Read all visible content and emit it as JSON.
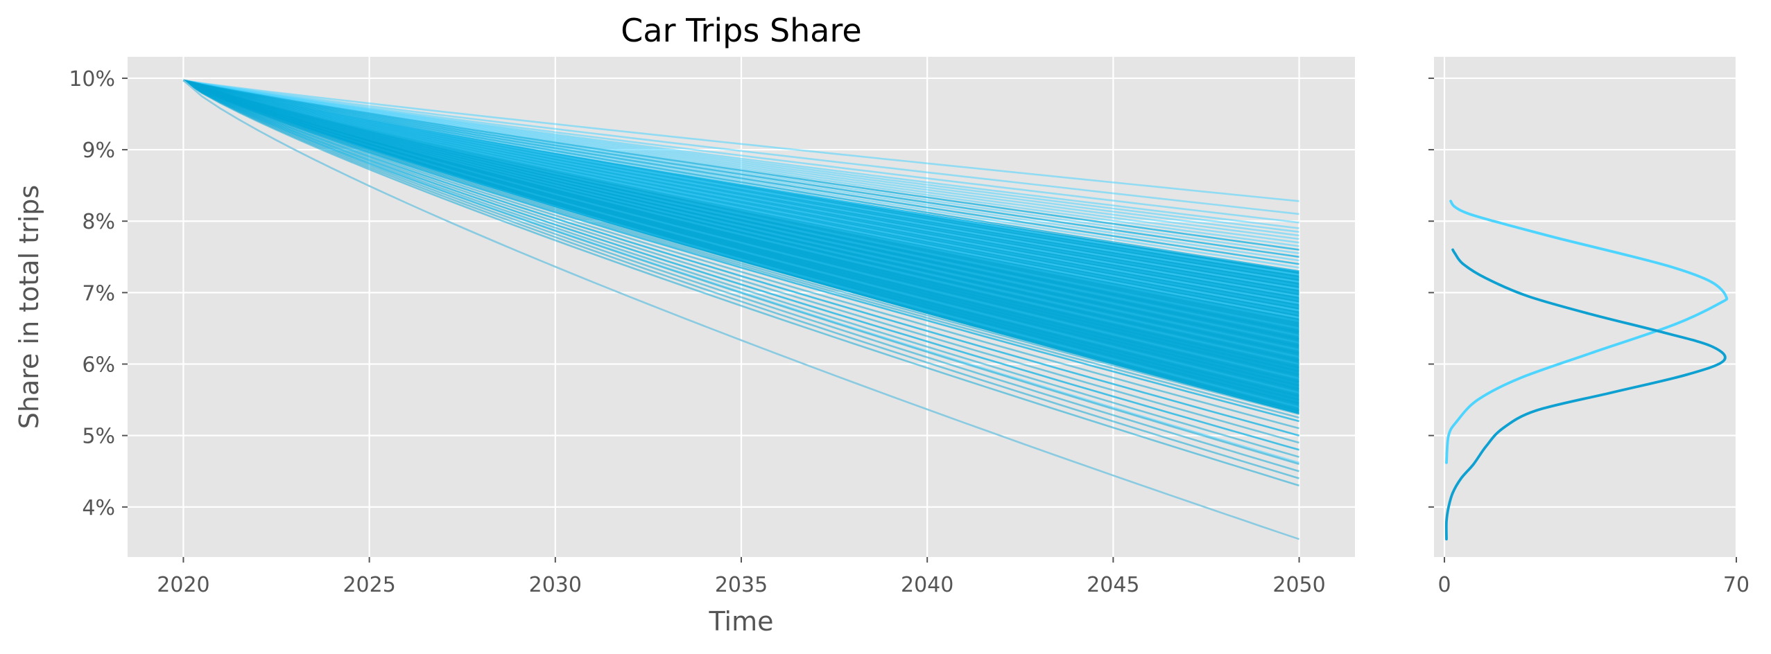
{
  "chart_data": [
    {
      "type": "line",
      "title": "Car Trips Share",
      "xlabel": "Time",
      "ylabel": "Share in total trips",
      "xlim": [
        2018.5,
        2051.5
      ],
      "ylim": [
        3.3,
        10.3
      ],
      "x_ticks": [
        2020,
        2025,
        2030,
        2035,
        2040,
        2045,
        2050
      ],
      "x_tick_labels": [
        "2020",
        "2025",
        "2030",
        "2035",
        "2040",
        "2045",
        "2050"
      ],
      "y_ticks": [
        4,
        5,
        6,
        7,
        8,
        9,
        10
      ],
      "y_tick_labels": [
        "4%",
        "5%",
        "6%",
        "7%",
        "8%",
        "9%",
        "10%"
      ],
      "grid": true,
      "start": {
        "x": 2020,
        "y": 9.97
      },
      "end_range": [
        3.55,
        8.28
      ],
      "groups": [
        {
          "color": "#4dd4ff",
          "ends": [
            8.28,
            8.1,
            7.98,
            7.9,
            7.85,
            7.8,
            7.75,
            7.7,
            7.65,
            7.6,
            7.55,
            7.5,
            7.45,
            7.4,
            7.35,
            7.3,
            7.25,
            7.2,
            7.15,
            7.1,
            7.05,
            7.0,
            6.95,
            6.9,
            6.85,
            6.8,
            6.75,
            6.7,
            6.65,
            6.6,
            6.5,
            6.4,
            6.3,
            6.2,
            6.1,
            6.0,
            5.8,
            5.6,
            5.4,
            5.2,
            5.0,
            4.8,
            4.62
          ]
        },
        {
          "color": "#00a6d6",
          "ends": [
            7.6,
            7.5,
            7.4,
            7.3,
            7.2,
            7.1,
            7.0,
            6.9,
            6.8,
            6.7,
            6.6,
            6.5,
            6.45,
            6.4,
            6.35,
            6.3,
            6.25,
            6.2,
            6.15,
            6.1,
            6.05,
            6.0,
            5.95,
            5.9,
            5.85,
            5.8,
            5.75,
            5.7,
            5.65,
            5.6,
            5.55,
            5.5,
            5.45,
            5.4,
            5.35,
            5.3,
            5.25,
            5.2,
            5.1,
            5.0,
            4.9,
            4.8,
            4.7,
            4.6,
            4.5,
            4.4,
            4.3
          ]
        },
        {
          "color": "#7fc8e0",
          "ends": [
            3.55
          ]
        }
      ]
    },
    {
      "type": "line",
      "title": "",
      "xlim": [
        -2.5,
        70
      ],
      "ylim": [
        3.3,
        10.3
      ],
      "x_ticks": [
        0,
        70
      ],
      "x_tick_labels": [
        "0",
        "70"
      ],
      "y_ticks": [
        4,
        5,
        6,
        7,
        8,
        9,
        10
      ],
      "grid": true,
      "series": [
        {
          "color": "#4dd4ff",
          "points": [
            [
              0.5,
              4.62
            ],
            [
              1.0,
              5.0
            ],
            [
              3.0,
              5.2
            ],
            [
              8.0,
              5.5
            ],
            [
              18.0,
              5.8
            ],
            [
              35.0,
              6.15
            ],
            [
              55.0,
              6.55
            ],
            [
              66.0,
              6.85
            ],
            [
              67.5,
              6.95
            ],
            [
              64.0,
              7.15
            ],
            [
              55.0,
              7.35
            ],
            [
              42.0,
              7.55
            ],
            [
              28.0,
              7.75
            ],
            [
              15.0,
              7.95
            ],
            [
              6.0,
              8.1
            ],
            [
              2.5,
              8.2
            ],
            [
              1.5,
              8.28
            ]
          ]
        },
        {
          "color": "#0ea0d0",
          "points": [
            [
              0.5,
              3.55
            ],
            [
              0.5,
              3.8
            ],
            [
              1.0,
              4.0
            ],
            [
              2.0,
              4.2
            ],
            [
              4.0,
              4.4
            ],
            [
              7.0,
              4.6
            ],
            [
              10.0,
              4.85
            ],
            [
              14.0,
              5.1
            ],
            [
              22.0,
              5.35
            ],
            [
              40.0,
              5.6
            ],
            [
              58.0,
              5.85
            ],
            [
              67.0,
              6.05
            ],
            [
              64.0,
              6.25
            ],
            [
              52.0,
              6.45
            ],
            [
              35.0,
              6.7
            ],
            [
              20.0,
              6.95
            ],
            [
              10.0,
              7.2
            ],
            [
              4.5,
              7.4
            ],
            [
              2.5,
              7.55
            ],
            [
              2.0,
              7.6
            ]
          ]
        }
      ]
    }
  ]
}
